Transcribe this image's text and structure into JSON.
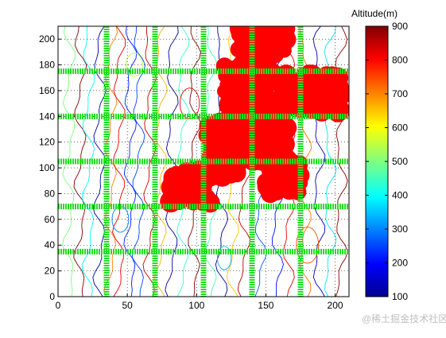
{
  "chart_data": {
    "type": "contour",
    "title": "",
    "xlabel": "",
    "ylabel": "",
    "xlim": [
      0,
      210
    ],
    "ylim": [
      0,
      210
    ],
    "xticks": [
      0,
      50,
      100,
      150,
      200
    ],
    "yticks": [
      0,
      20,
      40,
      60,
      80,
      100,
      120,
      140,
      160,
      180,
      200
    ],
    "grid": "dotted",
    "colorbar": {
      "title": "Altitude(m)",
      "range": [
        100,
        900
      ],
      "ticks": [
        100,
        200,
        300,
        400,
        500,
        600,
        700,
        800,
        900
      ],
      "colormap": "jet"
    },
    "grid_lines": {
      "color": "#22dd22",
      "x": [
        35,
        70,
        105,
        140,
        175
      ],
      "y": [
        35,
        70,
        105,
        140,
        175
      ]
    },
    "highlight_region": {
      "color": "#ff0000",
      "approx_cells": [
        [
          130,
          165,
          182,
          210
        ],
        [
          120,
          155,
          140,
          180
        ],
        [
          160,
          205,
          142,
          175
        ],
        [
          108,
          140,
          105,
          140
        ],
        [
          140,
          165,
          105,
          140
        ],
        [
          80,
          110,
          72,
          100
        ],
        [
          108,
          130,
          92,
          110
        ],
        [
          150,
          175,
          80,
          108
        ]
      ]
    },
    "watermark": "@稀土掘金技术社区"
  }
}
